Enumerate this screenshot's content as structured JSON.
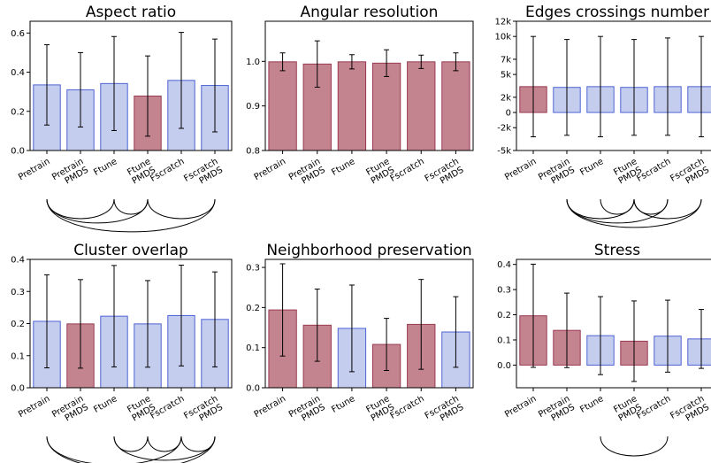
{
  "colors": {
    "blue_fill": "#c5cdee",
    "blue_edge": "#4d63d6",
    "red_fill": "#c3848f",
    "red_edge": "#9a3a52"
  },
  "chart_data": [
    {
      "type": "bar",
      "title": "Aspect ratio",
      "categories": [
        "Pretrain",
        "Pretrain\nPMDS",
        "Ftune",
        "Ftune\nPMDS",
        "Fscratch",
        "Fscratch\nPMDS"
      ],
      "values": [
        0.335,
        0.31,
        0.342,
        0.278,
        0.358,
        0.332
      ],
      "errors": [
        0.205,
        0.19,
        0.24,
        0.205,
        0.245,
        0.237
      ],
      "highlight": [
        false,
        false,
        false,
        true,
        false,
        false
      ],
      "ylim": [
        0,
        0.66
      ],
      "yticks": [
        0,
        0.2,
        0.4,
        0.6
      ],
      "ytick_labels": [
        "0.0",
        "0.2",
        "0.4",
        "0.6"
      ],
      "significance_arcs": [
        [
          0,
          3
        ],
        [
          0,
          2
        ],
        [
          0,
          5
        ],
        [
          2,
          3
        ],
        [
          3,
          5
        ]
      ]
    },
    {
      "type": "bar",
      "title": "Angular resolution",
      "categories": [
        "Pretrain",
        "Pretrain\nPMDS",
        "Ftune",
        "Ftune\nPMDS",
        "Fscratch",
        "Fscratch\nPMDS"
      ],
      "values": [
        0.999,
        0.994,
        0.999,
        0.996,
        0.999,
        0.999
      ],
      "errors": [
        0.02,
        0.052,
        0.016,
        0.03,
        0.015,
        0.02
      ],
      "highlight": [
        true,
        true,
        true,
        true,
        true,
        true
      ],
      "ylim": [
        0.8,
        1.09
      ],
      "yticks": [
        0.8,
        0.9,
        1.0
      ],
      "ytick_labels": [
        "0.8",
        "0.9",
        "1.0"
      ],
      "significance_arcs": []
    },
    {
      "type": "bar",
      "title": "Edges crossings number",
      "categories": [
        "Pretrain",
        "Pretrain\nPMDS",
        "Ftune",
        "Ftune\nPMDS",
        "Fscratch",
        "Fscratch\nPMDS"
      ],
      "values": [
        3400,
        3300,
        3400,
        3300,
        3400,
        3400
      ],
      "errors": [
        6600,
        6300,
        6600,
        6300,
        6400,
        6600
      ],
      "highlight": [
        true,
        false,
        false,
        false,
        false,
        false
      ],
      "ylim": [
        -5000,
        12000
      ],
      "yticks": [
        -5000,
        -2000,
        0,
        2000,
        5000,
        7000,
        10000,
        12000
      ],
      "ytick_labels": [
        "-5k",
        "-2k",
        "0",
        "2k",
        "5k",
        "7k",
        "10k",
        "12k"
      ],
      "significance_arcs": [
        [
          1,
          3
        ],
        [
          1,
          4
        ],
        [
          1,
          5
        ],
        [
          2,
          3
        ],
        [
          3,
          4
        ],
        [
          3,
          5
        ]
      ]
    },
    {
      "type": "bar",
      "title": "Cluster overlap",
      "categories": [
        "Pretrain",
        "Pretrain\nPMDS",
        "Ftune",
        "Ftune\nPMDS",
        "Fscratch",
        "Fscratch\nPMDS"
      ],
      "values": [
        0.207,
        0.199,
        0.223,
        0.199,
        0.225,
        0.213
      ],
      "errors": [
        0.145,
        0.138,
        0.158,
        0.135,
        0.157,
        0.148
      ],
      "highlight": [
        false,
        true,
        false,
        false,
        false,
        false
      ],
      "ylim": [
        0,
        0.4
      ],
      "yticks": [
        0,
        0.1,
        0.2,
        0.3,
        0.4
      ],
      "ytick_labels": [
        "0.0",
        "0.1",
        "0.2",
        "0.3",
        "0.4"
      ],
      "significance_arcs": [
        [
          0,
          4
        ],
        [
          0,
          5
        ],
        [
          2,
          3
        ],
        [
          2,
          5
        ],
        [
          3,
          4
        ],
        [
          4,
          5
        ]
      ]
    },
    {
      "type": "bar",
      "title": "Neighborhood preservation",
      "categories": [
        "Pretrain",
        "Pretrain\nPMDS",
        "Ftune",
        "Ftune\nPMDS",
        "Fscratch",
        "Fscratch\nPMDS"
      ],
      "values": [
        0.194,
        0.156,
        0.148,
        0.108,
        0.158,
        0.139
      ],
      "errors": [
        0.115,
        0.09,
        0.108,
        0.065,
        0.112,
        0.088
      ],
      "highlight": [
        true,
        true,
        false,
        true,
        true,
        false
      ],
      "ylim": [
        0,
        0.32
      ],
      "yticks": [
        0,
        0.1,
        0.2,
        0.3
      ],
      "ytick_labels": [
        "0.0",
        "0.1",
        "0.2",
        "0.3"
      ],
      "significance_arcs": []
    },
    {
      "type": "bar",
      "title": "Stress",
      "categories": [
        "Pretrain",
        "Pretrain\nPMDS",
        "Ftune",
        "Ftune\nPMDS",
        "Fscratch",
        "Fscratch\nPMDS"
      ],
      "values": [
        0.196,
        0.138,
        0.117,
        0.095,
        0.115,
        0.104
      ],
      "errors": [
        0.205,
        0.148,
        0.155,
        0.16,
        0.143,
        0.117
      ],
      "highlight": [
        true,
        true,
        false,
        true,
        false,
        false
      ],
      "ylim": [
        -0.09,
        0.42
      ],
      "yticks": [
        0,
        0.1,
        0.2,
        0.3,
        0.4
      ],
      "ytick_labels": [
        "0.0",
        "0.1",
        "0.2",
        "0.3",
        "0.4"
      ],
      "significance_arcs": [
        [
          2,
          4
        ]
      ]
    }
  ]
}
